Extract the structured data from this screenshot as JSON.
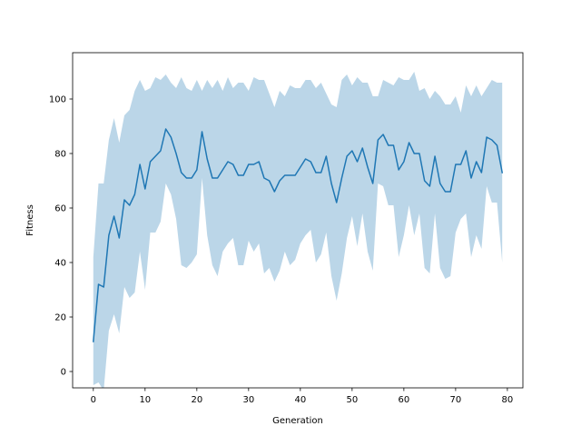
{
  "chart_data": {
    "type": "line",
    "title": "",
    "xlabel": "Generation",
    "ylabel": "Fitness",
    "xlim": [
      -4,
      83
    ],
    "ylim": [
      -6,
      117
    ],
    "xticks": [
      0,
      10,
      20,
      30,
      40,
      50,
      60,
      70,
      80
    ],
    "yticks": [
      0,
      20,
      40,
      60,
      80,
      100
    ],
    "grid": false,
    "legend": "none",
    "series": [
      {
        "color": "#1f77b4",
        "band_color": "#1f77b4",
        "band_opacity": 0.3,
        "x": [
          0,
          1,
          2,
          3,
          4,
          5,
          6,
          7,
          8,
          9,
          10,
          11,
          12,
          13,
          14,
          15,
          16,
          17,
          18,
          19,
          20,
          21,
          22,
          23,
          24,
          25,
          26,
          27,
          28,
          29,
          30,
          31,
          32,
          33,
          34,
          35,
          36,
          37,
          38,
          39,
          40,
          41,
          42,
          43,
          44,
          45,
          46,
          47,
          48,
          49,
          50,
          51,
          52,
          53,
          54,
          55,
          56,
          57,
          58,
          59,
          60,
          61,
          62,
          63,
          64,
          65,
          66,
          67,
          68,
          69,
          70,
          71,
          72,
          73,
          74,
          75,
          76,
          77,
          78,
          79
        ],
        "mean": [
          11,
          32,
          31,
          50,
          57,
          49,
          63,
          61,
          65,
          76,
          67,
          77,
          79,
          81,
          89,
          86,
          80,
          73,
          71,
          71,
          74,
          88,
          78,
          71,
          71,
          74,
          77,
          76,
          72,
          72,
          76,
          76,
          77,
          71,
          70,
          66,
          70,
          72,
          72,
          72,
          75,
          78,
          77,
          73,
          73,
          79,
          69,
          62,
          71,
          79,
          81,
          77,
          82,
          75,
          69,
          85,
          87,
          83,
          83,
          74,
          77,
          84,
          80,
          80,
          70,
          68,
          79,
          69,
          66,
          66,
          76,
          76,
          81,
          71,
          77,
          73,
          86,
          85,
          83,
          73
        ],
        "upper": [
          42,
          69,
          69,
          85,
          93,
          84,
          94,
          96,
          103,
          107,
          103,
          104,
          108,
          107,
          109,
          106,
          104,
          108,
          104,
          103,
          107,
          103,
          107,
          104,
          107,
          103,
          108,
          104,
          106,
          106,
          103,
          108,
          107,
          107,
          102,
          97,
          103,
          101,
          105,
          104,
          104,
          107,
          107,
          104,
          106,
          102,
          98,
          97,
          107,
          109,
          105,
          108,
          106,
          106,
          101,
          101,
          107,
          106,
          105,
          108,
          107,
          107,
          110,
          103,
          104,
          100,
          103,
          101,
          98,
          98,
          101,
          95,
          105,
          101,
          105,
          101,
          104,
          107,
          106,
          106
        ],
        "lower": [
          -5,
          -4,
          -7,
          15,
          21,
          14,
          31,
          27,
          29,
          44,
          30,
          51,
          51,
          55,
          69,
          65,
          56,
          39,
          38,
          40,
          43,
          71,
          50,
          39,
          35,
          44,
          47,
          49,
          39,
          39,
          48,
          44,
          47,
          36,
          38,
          33,
          37,
          44,
          39,
          41,
          47,
          50,
          52,
          40,
          43,
          51,
          35,
          26,
          36,
          49,
          57,
          46,
          58,
          44,
          37,
          69,
          68,
          61,
          61,
          42,
          50,
          61,
          50,
          58,
          38,
          36,
          58,
          38,
          34,
          35,
          51,
          56,
          58,
          42,
          50,
          45,
          68,
          62,
          62,
          40
        ]
      }
    ]
  }
}
